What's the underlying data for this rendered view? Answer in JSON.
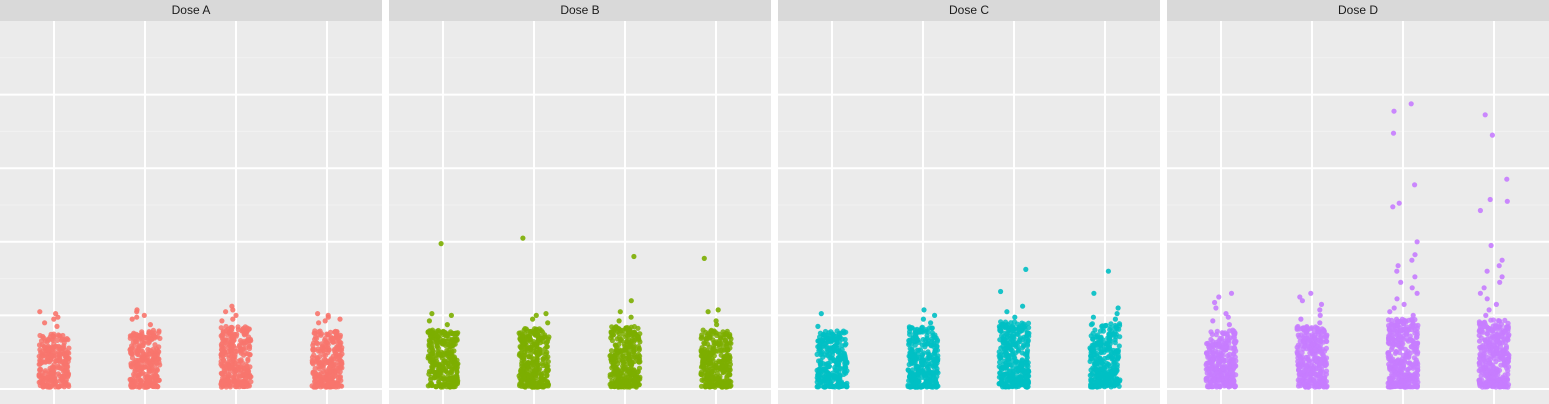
{
  "chart_data": {
    "type": "scatter",
    "title": "",
    "xlabel": "",
    "ylabel": "",
    "facet_by": "dose",
    "jitter": true,
    "grid": true,
    "legend": "none",
    "groups_per_panel": 4,
    "ylim": [
      0,
      10
    ],
    "y_gridlines_major": [
      0,
      2,
      4,
      6,
      8
    ],
    "panels": [
      {
        "label": "Dose A",
        "color": "#F8766D",
        "groups": [
          {
            "n": 260,
            "bulk_max": 1.5,
            "outliers": [
              1.7,
              1.8,
              1.95,
              1.9,
              2.05,
              2.1
            ]
          },
          {
            "n": 270,
            "bulk_max": 1.6,
            "outliers": [
              1.75,
              1.9,
              2.0,
              2.1,
              2.15,
              1.95
            ]
          },
          {
            "n": 300,
            "bulk_max": 1.7,
            "outliers": [
              1.85,
              2.0,
              2.15,
              2.25,
              2.1,
              1.9
            ]
          },
          {
            "n": 270,
            "bulk_max": 1.6,
            "outliers": [
              1.8,
              1.95,
              2.05,
              1.9,
              2.0,
              1.85
            ]
          }
        ]
      },
      {
        "label": "Dose B",
        "color": "#7CAE00",
        "groups": [
          {
            "n": 280,
            "bulk_max": 1.6,
            "outliers": [
              1.75,
              1.85,
              2.0,
              2.05,
              3.95
            ]
          },
          {
            "n": 290,
            "bulk_max": 1.65,
            "outliers": [
              1.8,
              1.9,
              2.0,
              2.05,
              4.1
            ]
          },
          {
            "n": 310,
            "bulk_max": 1.7,
            "outliers": [
              1.85,
              1.95,
              2.1,
              2.4,
              3.6
            ]
          },
          {
            "n": 290,
            "bulk_max": 1.6,
            "outliers": [
              1.75,
              1.85,
              2.1,
              2.15,
              3.55
            ]
          }
        ]
      },
      {
        "label": "Dose C",
        "color": "#00BFC4",
        "groups": [
          {
            "n": 270,
            "bulk_max": 1.6,
            "outliers": [
              1.7,
              2.05
            ]
          },
          {
            "n": 290,
            "bulk_max": 1.7,
            "outliers": [
              1.8,
              1.9,
              2.0,
              2.15
            ]
          },
          {
            "n": 320,
            "bulk_max": 1.85,
            "outliers": [
              1.95,
              2.1,
              2.25,
              2.65,
              3.25
            ]
          },
          {
            "n": 300,
            "bulk_max": 1.8,
            "outliers": [
              1.9,
              1.95,
              2.05,
              2.2,
              2.6,
              3.2
            ]
          }
        ]
      },
      {
        "label": "Dose D",
        "color": "#C77CFF",
        "groups": [
          {
            "n": 290,
            "bulk_max": 1.6,
            "outliers": [
              1.75,
              1.85,
              1.95,
              2.05,
              2.2,
              2.35,
              2.5,
              2.6
            ]
          },
          {
            "n": 300,
            "bulk_max": 1.7,
            "outliers": [
              1.8,
              1.9,
              2.0,
              2.15,
              2.3,
              2.4,
              2.5,
              2.6
            ]
          },
          {
            "n": 340,
            "bulk_max": 1.9,
            "outliers": [
              2.0,
              2.1,
              2.2,
              2.3,
              2.45,
              2.6,
              2.75,
              2.9,
              3.05,
              3.2,
              3.35,
              3.5,
              3.65,
              4.0,
              4.95,
              5.05,
              5.55,
              6.95,
              7.55,
              7.75
            ]
          },
          {
            "n": 330,
            "bulk_max": 1.9,
            "outliers": [
              2.0,
              2.15,
              2.3,
              2.45,
              2.6,
              2.75,
              2.9,
              3.05,
              3.2,
              3.35,
              3.5,
              3.9,
              4.85,
              5.1,
              5.15,
              5.7,
              6.9,
              7.45
            ]
          }
        ]
      }
    ]
  }
}
